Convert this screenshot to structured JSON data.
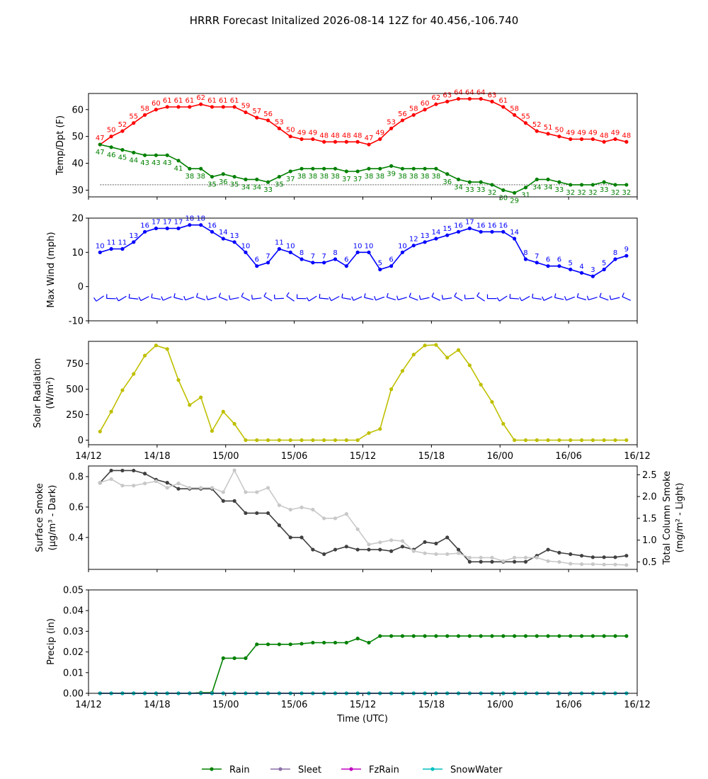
{
  "figure": {
    "title": "HRRR Forecast Initalized 2026-08-14 12Z for 40.456,-106.740",
    "xlabel": "Time (UTC)",
    "x_ticks": [
      "14/12",
      "14/18",
      "15/00",
      "15/06",
      "15/12",
      "15/18",
      "16/00",
      "16/06",
      "16/12"
    ]
  },
  "chart_data": [
    {
      "type": "line",
      "ylabel": "Temp/Dpt (F)",
      "x_hours": [
        1,
        2,
        3,
        4,
        5,
        6,
        7,
        8,
        9,
        10,
        11,
        12,
        13,
        14,
        15,
        16,
        17,
        18,
        19,
        20,
        21,
        22,
        23,
        24,
        25,
        26,
        27,
        28,
        29,
        30,
        31,
        32,
        33,
        34,
        35,
        36,
        37,
        38,
        39,
        40,
        41,
        42,
        43,
        44,
        45,
        46,
        47,
        48
      ],
      "ylim": [
        27.5,
        66
      ],
      "yticks": [
        30,
        40,
        50,
        60
      ],
      "reference_line": 32,
      "series": [
        {
          "name": "Temp",
          "color": "#ff0000",
          "values": [
            47,
            50,
            52,
            55,
            58,
            60,
            61,
            61,
            61,
            62,
            61,
            61,
            61,
            59,
            57,
            56,
            53,
            50,
            49,
            49,
            48,
            48,
            48,
            48,
            47,
            49,
            53,
            56,
            58,
            60,
            62,
            63,
            64,
            64,
            64,
            63,
            61,
            58,
            55,
            52,
            51,
            50,
            49,
            49,
            49,
            48,
            49,
            48
          ]
        },
        {
          "name": "Dewpoint",
          "color": "#008000",
          "values": [
            47,
            46,
            45,
            44,
            43,
            43,
            43,
            41,
            38,
            38,
            35,
            36,
            35,
            34,
            34,
            33,
            35,
            37,
            38,
            38,
            38,
            38,
            37,
            37,
            38,
            38,
            39,
            38,
            38,
            38,
            38,
            36,
            34,
            33,
            33,
            32,
            30,
            29,
            31,
            34,
            34,
            33,
            32,
            32,
            32,
            33,
            32,
            32
          ]
        }
      ]
    },
    {
      "type": "line",
      "ylabel": "Max Wind (mph)",
      "x_hours": [
        1,
        2,
        3,
        4,
        5,
        6,
        7,
        8,
        9,
        10,
        11,
        12,
        13,
        14,
        15,
        16,
        17,
        18,
        19,
        20,
        21,
        22,
        23,
        24,
        25,
        26,
        27,
        28,
        29,
        30,
        31,
        32,
        33,
        34,
        35,
        36,
        37,
        38,
        39,
        40,
        41,
        42,
        43,
        44,
        45,
        46,
        47,
        48
      ],
      "ylim": [
        -10,
        20
      ],
      "yticks": [
        -10,
        0,
        10,
        20
      ],
      "barb_row_y": -3.5,
      "series": [
        {
          "name": "Max Wind",
          "color": "#0000ff",
          "values": [
            10,
            11,
            11,
            13,
            16,
            17,
            17,
            17,
            18,
            18,
            16,
            14,
            13,
            10,
            6,
            7,
            11,
            10,
            8,
            7,
            7,
            8,
            6,
            10,
            10,
            5,
            6,
            10,
            12,
            13,
            14,
            15,
            16,
            17,
            16,
            16,
            16,
            14,
            8,
            7,
            6,
            6,
            5,
            4,
            3,
            5,
            8,
            9
          ]
        }
      ]
    },
    {
      "type": "line",
      "ylabel": "Solar Radiation",
      "ylabel_units": "(W/m²)",
      "x_hours": [
        1,
        2,
        3,
        4,
        5,
        6,
        7,
        8,
        9,
        10,
        11,
        12,
        13,
        14,
        15,
        16,
        17,
        18,
        19,
        20,
        21,
        22,
        23,
        24,
        25,
        26,
        27,
        28,
        29,
        30,
        31,
        32,
        33,
        34,
        35,
        36,
        37,
        38,
        39,
        40,
        41,
        42,
        43,
        44,
        45,
        46,
        47,
        48
      ],
      "ylim": [
        -45,
        970
      ],
      "yticks": [
        0,
        250,
        500,
        750
      ],
      "series": [
        {
          "name": "Solar Radiation",
          "color": "#bfbf00",
          "values": [
            85,
            280,
            490,
            650,
            830,
            930,
            895,
            590,
            345,
            420,
            90,
            280,
            160,
            0,
            0,
            0,
            0,
            0,
            0,
            0,
            0,
            0,
            0,
            0,
            70,
            110,
            500,
            680,
            840,
            930,
            935,
            810,
            885,
            735,
            545,
            375,
            160,
            0,
            0,
            0,
            0,
            0,
            0,
            0,
            0,
            0,
            0,
            0
          ]
        }
      ]
    },
    {
      "type": "line",
      "ylabel": "Surface Smoke",
      "ylabel_units": "(μg/m³ - Dark)",
      "ylabel_right": "Total Column Smoke",
      "ylabel_right_units": "(mg/m² - Light)",
      "x_hours": [
        1,
        2,
        3,
        4,
        5,
        6,
        7,
        8,
        9,
        10,
        11,
        12,
        13,
        14,
        15,
        16,
        17,
        18,
        19,
        20,
        21,
        22,
        23,
        24,
        25,
        26,
        27,
        28,
        29,
        30,
        31,
        32,
        33,
        34,
        35,
        36,
        37,
        38,
        39,
        40,
        41,
        42,
        43,
        44,
        45,
        46,
        47,
        48
      ],
      "ylim": [
        0.19,
        0.87
      ],
      "yticks": [
        0.4,
        0.6,
        0.8
      ],
      "ylim_right": [
        0.33,
        2.7
      ],
      "yticks_right": [
        0.5,
        1.0,
        1.5,
        2.0,
        2.5
      ],
      "series": [
        {
          "name": "Surface Smoke",
          "axis": "left",
          "color": "#404040",
          "values": [
            0.76,
            0.84,
            0.84,
            0.84,
            0.82,
            0.78,
            0.76,
            0.72,
            0.72,
            0.72,
            0.72,
            0.64,
            0.64,
            0.56,
            0.56,
            0.56,
            0.48,
            0.4,
            0.4,
            0.32,
            0.29,
            0.32,
            0.34,
            0.32,
            0.32,
            0.32,
            0.31,
            0.34,
            0.32,
            0.37,
            0.36,
            0.4,
            0.32,
            0.24,
            0.24,
            0.24,
            0.24,
            0.24,
            0.24,
            0.28,
            0.32,
            0.3,
            0.29,
            0.28,
            0.27,
            0.27,
            0.27,
            0.28
          ]
        },
        {
          "name": "Total Column Smoke",
          "axis": "right",
          "color": "#c8c8c8",
          "values": [
            2.32,
            2.4,
            2.25,
            2.25,
            2.3,
            2.35,
            2.2,
            2.3,
            2.2,
            2.2,
            2.2,
            2.1,
            2.6,
            2.1,
            2.1,
            2.2,
            1.8,
            1.7,
            1.75,
            1.7,
            1.5,
            1.5,
            1.6,
            1.25,
            0.9,
            0.95,
            1.0,
            0.98,
            0.75,
            0.7,
            0.68,
            0.68,
            0.7,
            0.6,
            0.6,
            0.6,
            0.52,
            0.6,
            0.6,
            0.6,
            0.52,
            0.5,
            0.46,
            0.45,
            0.45,
            0.44,
            0.44,
            0.43
          ]
        }
      ]
    },
    {
      "type": "line",
      "ylabel": "Precip (in)",
      "x_hours": [
        1,
        2,
        3,
        4,
        5,
        6,
        7,
        8,
        9,
        10,
        11,
        12,
        13,
        14,
        15,
        16,
        17,
        18,
        19,
        20,
        21,
        22,
        23,
        24,
        25,
        26,
        27,
        28,
        29,
        30,
        31,
        32,
        33,
        34,
        35,
        36,
        37,
        38,
        39,
        40,
        41,
        42,
        43,
        44,
        45,
        46,
        47,
        48
      ],
      "ylim": [
        0,
        0.05
      ],
      "yticks": [
        0.0,
        0.01,
        0.02,
        0.03,
        0.04,
        0.05
      ],
      "series": [
        {
          "name": "Rain",
          "color": "#008000",
          "values": [
            0,
            0,
            0,
            0,
            0,
            0,
            0,
            0,
            0,
            0.0003,
            0.0003,
            0.017,
            0.017,
            0.017,
            0.0237,
            0.0237,
            0.0237,
            0.0237,
            0.024,
            0.0245,
            0.0245,
            0.0245,
            0.0245,
            0.0265,
            0.0245,
            0.0277,
            0.0277,
            0.0277,
            0.0277,
            0.0277,
            0.0277,
            0.0277,
            0.0277,
            0.0277,
            0.0277,
            0.0277,
            0.0277,
            0.0277,
            0.0277,
            0.0277,
            0.0277,
            0.0277,
            0.0277,
            0.0277,
            0.0277,
            0.0277,
            0.0277,
            0.0277
          ]
        },
        {
          "name": "Sleet",
          "color": "#8c6fa8",
          "values": [
            0,
            0,
            0,
            0,
            0,
            0,
            0,
            0,
            0,
            0,
            0,
            0,
            0,
            0,
            0,
            0,
            0,
            0,
            0,
            0,
            0,
            0,
            0,
            0,
            0,
            0,
            0,
            0,
            0,
            0,
            0,
            0,
            0,
            0,
            0,
            0,
            0,
            0,
            0,
            0,
            0,
            0,
            0,
            0,
            0,
            0,
            0,
            0
          ]
        },
        {
          "name": "FzRain",
          "color": "#c000c0",
          "values": [
            0,
            0,
            0,
            0,
            0,
            0,
            0,
            0,
            0,
            0,
            0,
            0,
            0,
            0,
            0,
            0,
            0,
            0,
            0,
            0,
            0,
            0,
            0,
            0,
            0,
            0,
            0,
            0,
            0,
            0,
            0,
            0,
            0,
            0,
            0,
            0,
            0,
            0,
            0,
            0,
            0,
            0,
            0,
            0,
            0,
            0,
            0,
            0
          ]
        },
        {
          "name": "SnowWater",
          "color": "#00bfbf",
          "values": [
            0,
            0,
            0,
            0,
            0,
            0,
            0,
            0,
            0,
            0,
            0,
            0,
            0,
            0,
            0,
            0,
            0,
            0,
            0,
            0,
            0,
            0,
            0,
            0,
            0,
            0,
            0,
            0,
            0,
            0,
            0,
            0,
            0,
            0,
            0,
            0,
            0,
            0,
            0,
            0,
            0,
            0,
            0,
            0,
            0,
            0,
            0,
            0
          ]
        }
      ]
    }
  ],
  "legend": {
    "placement": "bottom-center",
    "items": [
      {
        "label": "Rain",
        "color": "#008000"
      },
      {
        "label": "Sleet",
        "color": "#8c6fa8"
      },
      {
        "label": "FzRain",
        "color": "#c000c0"
      },
      {
        "label": "SnowWater",
        "color": "#00bfbf"
      }
    ]
  }
}
